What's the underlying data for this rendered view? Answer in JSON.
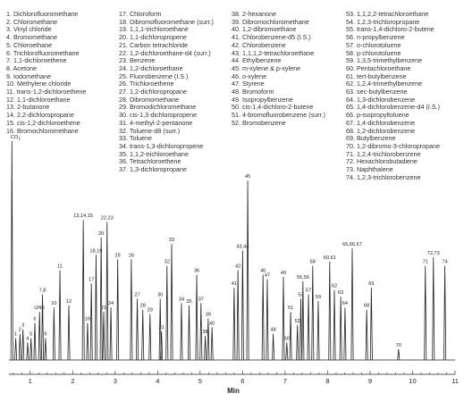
{
  "legend": {
    "columns": [
      [
        "1. Dichlorofluoromethane",
        "2. Chloromethane",
        "3. Vinyl chloride",
        "4. Bromomethane",
        "5. Chloroethane",
        "6. Trichlorofluoromethane",
        "7. 1,1-dichloroethene",
        "8. Acetone",
        "9. Iodomethane",
        "10. Methylene chloride",
        "11. trans-1,2-dichloroethene",
        "12. 1,1-dichloroethane",
        "13. 2-butanone",
        "14. 2,2-dichloropropane",
        "15. cis-1,2-dichloroethene",
        "16. Bromochloromethane"
      ],
      [
        "17. Chloroform",
        "18. Dibromofluoromethane (surr.)",
        "19. 1,1,1-trichloroethane",
        "20. 1,1-dichloropropene",
        "21. Carbon tetrachloride",
        "22. 1,2-dichloroethane-d4 (surr.)",
        "23. Benzene",
        "24. 1,2-dichloroethane",
        "25. Fluorobenzene (I.S.)",
        "26. Trichloroethene",
        "27. 1,2-dichloropropane",
        "28. Dibromomethane",
        "29. Bromodichloromethane",
        "30. cis-1,3-dichloropropene",
        "31. 4-methyl-2-pentanone",
        "32. Toluene-d8 (surr.)",
        "33. Toluene",
        "34. trans-1,3-dichloropropene",
        "35. 1,1,2-trichloroethane",
        "36. Tetrachloroethene",
        "37. 1,3-dichloropropane"
      ],
      [
        "38. 2-hexanone",
        "39. Dibromochloromethane",
        "40. 1,2-dibromoethane",
        "41. Chlorobenzene-d5 (I.S.)",
        "42. Chlorobenzene",
        "43. 1,1,1,2-tetrachloroethane",
        "44. Ethylbenzene",
        "45. m-xylene & p-xylene",
        "46. o-xylene",
        "47. Styrene",
        "48. Bromoform",
        "49. Isopropylbenzene",
        "50. cis-1,4-dichloro-2-butene",
        "51. 4-bromofluorobenzene (surr.)",
        "52. Bromobenzene"
      ],
      [
        "53. 1,1,2,2-tetrachloroethane",
        "54. 1,2,3-trichloropropane",
        "55. trans-1,4-dichloro-2-butene",
        "56. n-propylbenzene",
        "57. o-chlorotoluene",
        "58. p-chlorotoluene",
        "59. 1,3,5-trimethylbenzene",
        "60. Pentachloroethane",
        "61. tert-butylbenzene",
        "62. 1,2,4-trimethylbenzene",
        "63. sec-butylbenzene",
        "64. 1,3-dichlorobenzene",
        "65. 1,4-dichlorobenzene-d4 (I.S.)",
        "66. p-isopropyltoluene",
        "67. 1,4-dichlorobenzene",
        "68. 1,2-dichlorobenzene",
        "69. Butylbenzene",
        "70. 1,2-dibromo-3-chloropropane",
        "71. 1,2,4-trichlorobenzene",
        "72. Hexachlorobutadiene",
        "73. Naphthalene",
        "74. 1,2,3-trichlorobenzene"
      ]
    ]
  },
  "chart_data": {
    "type": "line",
    "title": "",
    "xlabel": "Min",
    "ylabel": "",
    "xlim": [
      0.5,
      11
    ],
    "ylim": [
      0,
      100
    ],
    "xticks": [
      "1",
      "2",
      "3",
      "4",
      "5",
      "6",
      "7",
      "8",
      "9",
      "10",
      "11"
    ],
    "grid": false,
    "peaks": [
      {
        "x": 0.57,
        "h": 100,
        "label": "CO2"
      },
      {
        "x": 0.66,
        "h": 10,
        "label": "1"
      },
      {
        "x": 0.76,
        "h": 12,
        "label": "2"
      },
      {
        "x": 0.83,
        "h": 14,
        "label": "3"
      },
      {
        "x": 0.94,
        "h": 8,
        "label": "4"
      },
      {
        "x": 1.02,
        "h": 10,
        "label": "5"
      },
      {
        "x": 1.11,
        "h": 17,
        "label": "6"
      },
      {
        "x": 1.22,
        "h": 22,
        "label": "UNK"
      },
      {
        "x": 1.29,
        "h": 30,
        "label": "7,8"
      },
      {
        "x": 1.36,
        "h": 10,
        "label": "9"
      },
      {
        "x": 1.56,
        "h": 24,
        "label": "10"
      },
      {
        "x": 1.7,
        "h": 41,
        "label": "11"
      },
      {
        "x": 1.91,
        "h": 25,
        "label": "12"
      },
      {
        "x": 2.25,
        "h": 64,
        "label": "13,14,15"
      },
      {
        "x": 2.35,
        "h": 17,
        "label": "16"
      },
      {
        "x": 2.44,
        "h": 35,
        "label": "17"
      },
      {
        "x": 2.55,
        "h": 48,
        "label": "18,19"
      },
      {
        "x": 2.67,
        "h": 56,
        "label": "20"
      },
      {
        "x": 2.73,
        "h": 22,
        "label": "21"
      },
      {
        "x": 2.81,
        "h": 63,
        "label": "22,23"
      },
      {
        "x": 2.9,
        "h": 24,
        "label": "24"
      },
      {
        "x": 3.06,
        "h": 46,
        "label": "25"
      },
      {
        "x": 3.38,
        "h": 46,
        "label": "26"
      },
      {
        "x": 3.52,
        "h": 28,
        "label": "27"
      },
      {
        "x": 3.65,
        "h": 23,
        "label": "28"
      },
      {
        "x": 3.82,
        "h": 21,
        "label": "29"
      },
      {
        "x": 4.06,
        "h": 28,
        "label": "30"
      },
      {
        "x": 4.09,
        "h": 13,
        "label": "31"
      },
      {
        "x": 4.22,
        "h": 43,
        "label": "32"
      },
      {
        "x": 4.33,
        "h": 53,
        "label": "33"
      },
      {
        "x": 4.56,
        "h": 26,
        "label": "34"
      },
      {
        "x": 4.74,
        "h": 25,
        "label": "35"
      },
      {
        "x": 4.92,
        "h": 39,
        "label": "36"
      },
      {
        "x": 5.02,
        "h": 26,
        "label": "37"
      },
      {
        "x": 5.12,
        "h": 11,
        "label": "38"
      },
      {
        "x": 5.19,
        "h": 19,
        "label": "39"
      },
      {
        "x": 5.28,
        "h": 15,
        "label": "40"
      },
      {
        "x": 5.8,
        "h": 33,
        "label": "41"
      },
      {
        "x": 5.89,
        "h": 41,
        "label": "42"
      },
      {
        "x": 6.0,
        "h": 50,
        "label": "43,44"
      },
      {
        "x": 6.12,
        "h": 82,
        "label": "45"
      },
      {
        "x": 6.48,
        "h": 39,
        "label": "46"
      },
      {
        "x": 6.58,
        "h": 37,
        "label": "47"
      },
      {
        "x": 6.72,
        "h": 12,
        "label": "48"
      },
      {
        "x": 6.96,
        "h": 38,
        "label": "49"
      },
      {
        "x": 7.04,
        "h": 8,
        "label": "50"
      },
      {
        "x": 7.13,
        "h": 22,
        "label": "51"
      },
      {
        "x": 7.29,
        "h": 16,
        "label": "52"
      },
      {
        "x": 7.37,
        "h": 28,
        "label": "53"
      },
      {
        "x": 7.42,
        "h": 36,
        "label": "55,56"
      },
      {
        "x": 7.55,
        "h": 30,
        "label": "57"
      },
      {
        "x": 7.65,
        "h": 43,
        "label": "58"
      },
      {
        "x": 7.78,
        "h": 27,
        "label": "59"
      },
      {
        "x": 8.05,
        "h": 45,
        "label": "60,61"
      },
      {
        "x": 8.16,
        "h": 32,
        "label": "62"
      },
      {
        "x": 8.31,
        "h": 29,
        "label": "63"
      },
      {
        "x": 8.41,
        "h": 24,
        "label": "64"
      },
      {
        "x": 8.58,
        "h": 51,
        "label": "65,66,67"
      },
      {
        "x": 8.92,
        "h": 23,
        "label": "68"
      },
      {
        "x": 9.03,
        "h": 33,
        "label": "69"
      },
      {
        "x": 9.67,
        "h": 5,
        "label": "70"
      },
      {
        "x": 10.3,
        "h": 43,
        "label": "71"
      },
      {
        "x": 10.49,
        "h": 47,
        "label": "72,73"
      },
      {
        "x": 10.76,
        "h": 43,
        "label": "74"
      }
    ]
  }
}
